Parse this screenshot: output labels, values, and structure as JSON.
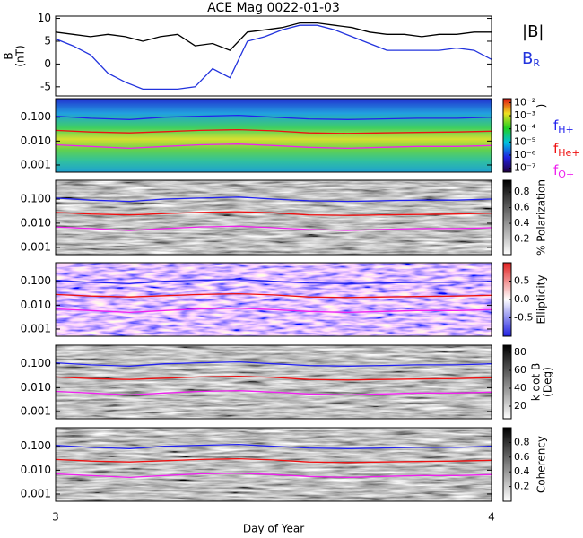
{
  "chart_data": [
    {
      "type": "line",
      "title": "ACE Mag 0022-01-03",
      "xlabel": "Day of Year",
      "ylabel": [
        "B",
        "(nT)"
      ],
      "xlim": [
        3,
        4
      ],
      "xticks": [
        3,
        4
      ],
      "ylim": [
        -7,
        10.5
      ],
      "yticks": [
        -5,
        0,
        5,
        10
      ],
      "x": [
        3.0,
        3.04,
        3.08,
        3.12,
        3.16,
        3.2,
        3.24,
        3.28,
        3.32,
        3.36,
        3.4,
        3.44,
        3.48,
        3.52,
        3.56,
        3.6,
        3.64,
        3.68,
        3.72,
        3.76,
        3.8,
        3.84,
        3.88,
        3.92,
        3.96,
        4.0
      ],
      "series": [
        {
          "name": "|B|",
          "color": "#000000",
          "values": [
            7,
            6.5,
            6,
            6.5,
            6,
            5,
            6,
            6.5,
            4,
            4.5,
            3,
            7,
            7.5,
            8,
            9,
            9,
            8.5,
            8,
            7,
            6.5,
            6.5,
            6,
            6.5,
            6.5,
            7,
            7
          ]
        },
        {
          "name": "BR",
          "color": "#2233dd",
          "values": [
            5.5,
            4,
            2,
            -2,
            -4,
            -5.5,
            -5.5,
            -5.5,
            -5,
            -1,
            -3,
            5,
            6,
            7.5,
            8.5,
            8.5,
            7.5,
            6,
            4.5,
            3,
            3,
            3,
            3,
            3.5,
            3,
            1
          ]
        }
      ]
    },
    {
      "type": "spectrogram",
      "log": true,
      "legend": true,
      "xlim": [
        3,
        4
      ],
      "ylim": [
        0.0005,
        0.6
      ],
      "yticks": [
        {
          "value": 0.1,
          "label": "0.100"
        },
        {
          "value": 0.01,
          "label": "0.010"
        },
        {
          "value": 0.001,
          "label": "0.001"
        }
      ],
      "zlog": true,
      "zlim": [
        5e-08,
        0.02
      ],
      "zlabel": [
        ")"
      ],
      "colormap": "rainbow",
      "zticks": [
        {
          "value": 0.01,
          "label": "10⁻²"
        },
        {
          "value": 0.001,
          "label": "10⁻³"
        },
        {
          "value": 0.0001,
          "label": "10⁻⁴"
        },
        {
          "value": 1e-05,
          "label": "10⁻⁵"
        },
        {
          "value": 1e-06,
          "label": "10⁻⁶"
        },
        {
          "value": 1e-07,
          "label": "10⁻⁷"
        }
      ],
      "x": [
        3.0,
        3.08,
        3.17,
        3.25,
        3.33,
        3.42,
        3.5,
        3.58,
        3.67,
        3.75,
        3.83,
        3.92,
        4.0
      ],
      "series": [
        {
          "name": "fH+",
          "color": "#2222ee",
          "values": [
            0.11,
            0.09,
            0.08,
            0.1,
            0.11,
            0.12,
            0.1,
            0.085,
            0.08,
            0.085,
            0.09,
            0.09,
            0.1
          ]
        },
        {
          "name": "fHe+",
          "color": "#ee1111",
          "values": [
            0.028,
            0.024,
            0.022,
            0.025,
            0.028,
            0.03,
            0.027,
            0.022,
            0.021,
            0.022,
            0.023,
            0.024,
            0.026
          ]
        },
        {
          "name": "fO+",
          "color": "#ee22ee",
          "values": [
            0.007,
            0.006,
            0.005,
            0.006,
            0.007,
            0.0075,
            0.0065,
            0.0055,
            0.005,
            0.0055,
            0.006,
            0.006,
            0.0065
          ]
        }
      ]
    },
    {
      "type": "spectrogram",
      "log": true,
      "xlim": [
        3,
        4
      ],
      "ylim": [
        0.0005,
        0.6
      ],
      "yticks": [
        {
          "value": 0.1,
          "label": "0.100"
        },
        {
          "value": 0.01,
          "label": "0.010"
        },
        {
          "value": 0.001,
          "label": "0.001"
        }
      ],
      "zlim": [
        0,
        0.95
      ],
      "zlabel": [
        "% Polarization"
      ],
      "colormap": "gray",
      "zticks": [
        0.2,
        0.4,
        0.6,
        0.8
      ],
      "x": [
        3.0,
        3.08,
        3.17,
        3.25,
        3.33,
        3.42,
        3.5,
        3.58,
        3.67,
        3.75,
        3.83,
        3.92,
        4.0
      ],
      "series": [
        {
          "color": "#2222ee",
          "values": [
            0.11,
            0.09,
            0.08,
            0.1,
            0.11,
            0.12,
            0.1,
            0.085,
            0.08,
            0.085,
            0.09,
            0.09,
            0.1
          ]
        },
        {
          "color": "#ee1111",
          "values": [
            0.028,
            0.024,
            0.022,
            0.025,
            0.028,
            0.03,
            0.027,
            0.022,
            0.021,
            0.022,
            0.023,
            0.024,
            0.026
          ]
        },
        {
          "color": "#ee22ee",
          "values": [
            0.007,
            0.006,
            0.005,
            0.006,
            0.007,
            0.0075,
            0.0065,
            0.0055,
            0.005,
            0.0055,
            0.006,
            0.006,
            0.0065
          ]
        }
      ]
    },
    {
      "type": "spectrogram",
      "log": true,
      "xlim": [
        3,
        4
      ],
      "ylim": [
        0.0005,
        0.6
      ],
      "yticks": [
        {
          "value": 0.1,
          "label": "0.100"
        },
        {
          "value": 0.01,
          "label": "0.010"
        },
        {
          "value": 0.001,
          "label": "0.001"
        }
      ],
      "zlim": [
        -1,
        1
      ],
      "zlabel": [
        "Ellipticity"
      ],
      "colormap": "bwr",
      "zticks": [
        0.5,
        {
          "value": 0,
          "label": "0.0"
        },
        -0.5
      ],
      "x": [
        3.0,
        3.08,
        3.17,
        3.25,
        3.33,
        3.42,
        3.5,
        3.58,
        3.67,
        3.75,
        3.83,
        3.92,
        4.0
      ],
      "series": [
        {
          "color": "#2222ee",
          "values": [
            0.11,
            0.09,
            0.08,
            0.1,
            0.11,
            0.12,
            0.1,
            0.085,
            0.08,
            0.085,
            0.09,
            0.09,
            0.1
          ]
        },
        {
          "color": "#ee1111",
          "values": [
            0.028,
            0.024,
            0.022,
            0.025,
            0.028,
            0.03,
            0.027,
            0.022,
            0.021,
            0.022,
            0.023,
            0.024,
            0.026
          ]
        },
        {
          "color": "#ee22ee",
          "values": [
            0.007,
            0.006,
            0.005,
            0.006,
            0.007,
            0.0075,
            0.0065,
            0.0055,
            0.005,
            0.0055,
            0.006,
            0.006,
            0.0065
          ]
        }
      ]
    },
    {
      "type": "spectrogram",
      "log": true,
      "xlim": [
        3,
        4
      ],
      "ylim": [
        0.0005,
        0.6
      ],
      "yticks": [
        {
          "value": 0.1,
          "label": "0.100"
        },
        {
          "value": 0.01,
          "label": "0.010"
        },
        {
          "value": 0.001,
          "label": "0.001"
        }
      ],
      "zlim": [
        6,
        88
      ],
      "zlabel": [
        "k dot B",
        "(Deg)"
      ],
      "colormap": "gray",
      "zticks": [
        20,
        40,
        60,
        80
      ],
      "x": [
        3.0,
        3.08,
        3.17,
        3.25,
        3.33,
        3.42,
        3.5,
        3.58,
        3.67,
        3.75,
        3.83,
        3.92,
        4.0
      ],
      "series": [
        {
          "color": "#2222ee",
          "values": [
            0.11,
            0.09,
            0.08,
            0.1,
            0.11,
            0.12,
            0.1,
            0.085,
            0.08,
            0.085,
            0.09,
            0.09,
            0.1
          ]
        },
        {
          "color": "#ee1111",
          "values": [
            0.028,
            0.024,
            0.022,
            0.025,
            0.028,
            0.03,
            0.027,
            0.022,
            0.021,
            0.022,
            0.023,
            0.024,
            0.026
          ]
        },
        {
          "color": "#ee22ee",
          "values": [
            0.007,
            0.006,
            0.005,
            0.006,
            0.007,
            0.0075,
            0.0065,
            0.0055,
            0.005,
            0.0055,
            0.006,
            0.006,
            0.0065
          ]
        }
      ]
    },
    {
      "type": "spectrogram",
      "log": true,
      "xlim": [
        3,
        4
      ],
      "ylim": [
        0.0005,
        0.6
      ],
      "yticks": [
        {
          "value": 0.1,
          "label": "0.100"
        },
        {
          "value": 0.01,
          "label": "0.010"
        },
        {
          "value": 0.001,
          "label": "0.001"
        }
      ],
      "zlim": [
        0,
        1
      ],
      "zlabel": [
        "Coherency"
      ],
      "colormap": "gray",
      "zticks": [
        0.2,
        0.4,
        0.6,
        0.8
      ],
      "x": [
        3.0,
        3.08,
        3.17,
        3.25,
        3.33,
        3.42,
        3.5,
        3.58,
        3.67,
        3.75,
        3.83,
        3.92,
        4.0
      ],
      "series": [
        {
          "color": "#2222ee",
          "values": [
            0.11,
            0.09,
            0.08,
            0.1,
            0.11,
            0.12,
            0.1,
            0.085,
            0.08,
            0.085,
            0.09,
            0.09,
            0.1
          ]
        },
        {
          "color": "#ee1111",
          "values": [
            0.028,
            0.024,
            0.022,
            0.025,
            0.028,
            0.03,
            0.027,
            0.022,
            0.021,
            0.022,
            0.023,
            0.024,
            0.026
          ]
        },
        {
          "color": "#ee22ee",
          "values": [
            0.007,
            0.006,
            0.005,
            0.006,
            0.007,
            0.0075,
            0.0065,
            0.0055,
            0.005,
            0.0055,
            0.006,
            0.006,
            0.0065
          ]
        }
      ]
    }
  ]
}
